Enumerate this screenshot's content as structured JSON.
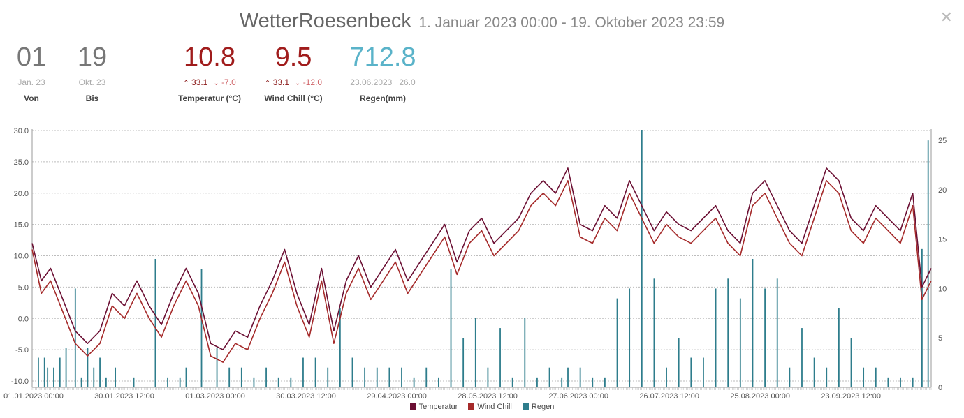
{
  "header": {
    "station": "WetterRoesenbeck",
    "range": "1. Januar 2023 00:00 - 19. Oktober 2023 23:59"
  },
  "stats": {
    "von": {
      "value": "01",
      "sub": "Jan. 23",
      "label": "Von"
    },
    "bis": {
      "value": "19",
      "sub": "Okt. 23",
      "label": "Bis"
    },
    "temperatur": {
      "value": "10.8",
      "max": "33.1",
      "min": "-7.0",
      "label": "Temperatur (°C)"
    },
    "windchill": {
      "value": "9.5",
      "max": "33.1",
      "min": "-12.0",
      "label": "Wind Chill (°C)"
    },
    "regen": {
      "value": "712.8",
      "date": "23.06.2023",
      "max": "26.0",
      "label": "Regen(mm)"
    }
  },
  "colors": {
    "temperatur": "#6b0f33",
    "windchill": "#a52a2a",
    "regen": "#2e7d8c",
    "regen_stat": "#5ab3c9",
    "red_stat": "#a01c1c"
  },
  "icons": {
    "close": "close-icon",
    "up": "chevron-up-icon",
    "down": "chevron-down-icon"
  },
  "chart_data": {
    "type": "line",
    "xlabel": "",
    "ylabel": "",
    "ylim": [
      -11,
      30
    ],
    "y2lim": [
      0,
      26
    ],
    "yticks": [
      "30.0",
      "25.0",
      "20.0",
      "15.0",
      "10.0",
      "5.0",
      "0.0",
      "-5.0",
      "-10.0"
    ],
    "y2ticks": [
      "25",
      "20",
      "15",
      "10",
      "5",
      "0"
    ],
    "xticks": [
      "01.01.2023 00:00",
      "30.01.2023 12:00",
      "01.03.2023 00:00",
      "30.03.2023 12:00",
      "29.04.2023 00:00",
      "28.05.2023 12:00",
      "27.06.2023 00:00",
      "26.07.2023 12:00",
      "25.08.2023 00:00",
      "23.09.2023 12:00"
    ],
    "x_day_range": [
      0,
      292
    ],
    "legend_position": "bottom",
    "series": [
      {
        "name": "Temperatur",
        "axis": "left",
        "kind": "line",
        "x": [
          0,
          3,
          6,
          10,
          14,
          18,
          22,
          26,
          30,
          34,
          38,
          42,
          46,
          50,
          54,
          58,
          62,
          66,
          70,
          74,
          78,
          82,
          86,
          90,
          94,
          98,
          102,
          106,
          110,
          114,
          118,
          122,
          126,
          130,
          134,
          138,
          142,
          146,
          150,
          154,
          158,
          162,
          166,
          170,
          174,
          178,
          182,
          186,
          190,
          194,
          198,
          202,
          206,
          210,
          214,
          218,
          222,
          226,
          230,
          234,
          238,
          242,
          246,
          250,
          254,
          258,
          262,
          266,
          270,
          274,
          278,
          282,
          286,
          289,
          292
        ],
        "y": [
          12,
          6,
          8,
          3,
          -2,
          -4,
          -2,
          4,
          2,
          6,
          2,
          -1,
          4,
          8,
          4,
          -4,
          -5,
          -2,
          -3,
          2,
          6,
          11,
          4,
          -1,
          8,
          -2,
          6,
          10,
          5,
          8,
          11,
          6,
          9,
          12,
          15,
          9,
          14,
          16,
          12,
          14,
          16,
          20,
          22,
          20,
          24,
          15,
          14,
          18,
          16,
          22,
          18,
          14,
          17,
          15,
          14,
          16,
          18,
          14,
          12,
          20,
          22,
          18,
          14,
          12,
          18,
          24,
          22,
          16,
          14,
          18,
          16,
          14,
          20,
          5,
          8
        ]
      },
      {
        "name": "Wind Chill",
        "axis": "left",
        "kind": "line",
        "x": [
          0,
          3,
          6,
          10,
          14,
          18,
          22,
          26,
          30,
          34,
          38,
          42,
          46,
          50,
          54,
          58,
          62,
          66,
          70,
          74,
          78,
          82,
          86,
          90,
          94,
          98,
          102,
          106,
          110,
          114,
          118,
          122,
          126,
          130,
          134,
          138,
          142,
          146,
          150,
          154,
          158,
          162,
          166,
          170,
          174,
          178,
          182,
          186,
          190,
          194,
          198,
          202,
          206,
          210,
          214,
          218,
          222,
          226,
          230,
          234,
          238,
          242,
          246,
          250,
          254,
          258,
          262,
          266,
          270,
          274,
          278,
          282,
          286,
          289,
          292
        ],
        "y": [
          11,
          4,
          6,
          1,
          -4,
          -6,
          -4,
          2,
          0,
          4,
          0,
          -3,
          2,
          6,
          2,
          -6,
          -7,
          -4,
          -5,
          0,
          4,
          9,
          2,
          -3,
          6,
          -4,
          4,
          8,
          3,
          6,
          9,
          4,
          7,
          10,
          13,
          7,
          12,
          14,
          10,
          12,
          14,
          18,
          20,
          18,
          22,
          13,
          12,
          16,
          14,
          20,
          16,
          12,
          15,
          13,
          12,
          14,
          16,
          12,
          10,
          18,
          20,
          16,
          12,
          10,
          16,
          22,
          20,
          14,
          12,
          16,
          14,
          12,
          18,
          3,
          6
        ]
      },
      {
        "name": "Regen",
        "axis": "right",
        "kind": "bars",
        "x": [
          2,
          4,
          5,
          7,
          9,
          11,
          14,
          16,
          18,
          20,
          22,
          24,
          27,
          33,
          36,
          40,
          44,
          48,
          50,
          55,
          60,
          64,
          68,
          72,
          76,
          80,
          84,
          88,
          92,
          96,
          100,
          104,
          108,
          112,
          116,
          120,
          124,
          128,
          132,
          136,
          140,
          144,
          148,
          152,
          156,
          160,
          164,
          168,
          172,
          174,
          178,
          182,
          186,
          190,
          194,
          198,
          202,
          206,
          210,
          214,
          218,
          222,
          226,
          230,
          234,
          238,
          242,
          246,
          250,
          254,
          258,
          262,
          266,
          270,
          274,
          278,
          282,
          286,
          289,
          291
        ],
        "y": [
          3,
          3,
          2,
          2,
          3,
          4,
          10,
          1,
          4,
          2,
          3,
          1,
          2,
          1,
          0,
          13,
          1,
          1,
          2,
          12,
          4,
          2,
          2,
          1,
          2,
          1,
          1,
          3,
          3,
          2,
          8,
          3,
          2,
          2,
          2,
          2,
          1,
          2,
          1,
          12,
          5,
          7,
          2,
          6,
          1,
          7,
          1,
          2,
          1,
          2,
          2,
          1,
          1,
          9,
          10,
          26,
          11,
          2,
          5,
          3,
          3,
          10,
          11,
          9,
          13,
          10,
          11,
          2,
          6,
          3,
          2,
          8,
          5,
          2,
          2,
          1,
          1,
          1,
          14,
          25
        ]
      }
    ]
  }
}
